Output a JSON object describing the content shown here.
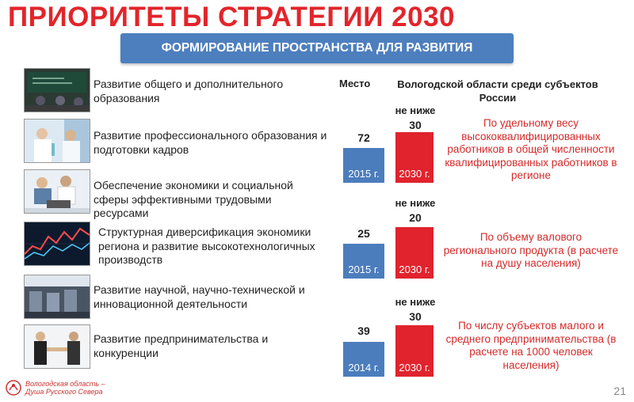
{
  "title": "ПРИОРИТЕТЫ СТРАТЕГИИ 2030",
  "banner": "ФОРМИРОВАНИЕ ПРОСТРАНСТВА ДЛЯ РАЗВИТИЯ",
  "header": {
    "place": "Место",
    "region_rank": "Вологодской области среди субъектов России"
  },
  "rows": [
    {
      "label": "Развитие общего и дополнительного образования",
      "icon": "classroom-photo"
    },
    {
      "label": "Развитие профессионального образования и подготовки кадров",
      "icon": "laboratory-photo"
    },
    {
      "label": "Обеспечение экономики и социальной сферы эффективными трудовыми ресурсами",
      "icon": "office-team-photo"
    },
    {
      "label": "Структурная диверсификация экономики региона и развитие высокотехнологичных производств",
      "icon": "stock-chart-photo"
    },
    {
      "label": "Развитие научной, научно-технической и инновационной деятельности",
      "icon": "factory-photo"
    },
    {
      "label": "Развитие предпринимательства и конкуренции",
      "icon": "handshake-photo"
    }
  ],
  "indicators": [
    {
      "base_rank": "72",
      "base_year": "2015 г.",
      "target_prefix": "не ниже",
      "target_rank": "30",
      "target_year": "2030 г.",
      "note": "По удельному весу высококвалифицированных работников в общей численности квалифицированных работников в регионе"
    },
    {
      "base_rank": "25",
      "base_year": "2015 г.",
      "target_prefix": "не ниже",
      "target_rank": "20",
      "target_year": "2030 г.",
      "note": "По объему валового регионального продукта (в расчете на душу населения)"
    },
    {
      "base_rank": "39",
      "base_year": "2014 г.",
      "target_prefix": "не ниже",
      "target_rank": "30",
      "target_year": "2030 г.",
      "note": "По числу субъектов малого и среднего предпринимательства (в расчете на 1000 человек населения)"
    }
  ],
  "footer": {
    "logo_line1": "Вологодская область –",
    "logo_line2": "Душа Русского Севера",
    "page_number": "21"
  },
  "colors": {
    "title": "#e2252b",
    "banner": "#4d7fbe",
    "bar_base": "#4b7dbd",
    "bar_target": "#e0232d",
    "note": "#d42a2a"
  }
}
